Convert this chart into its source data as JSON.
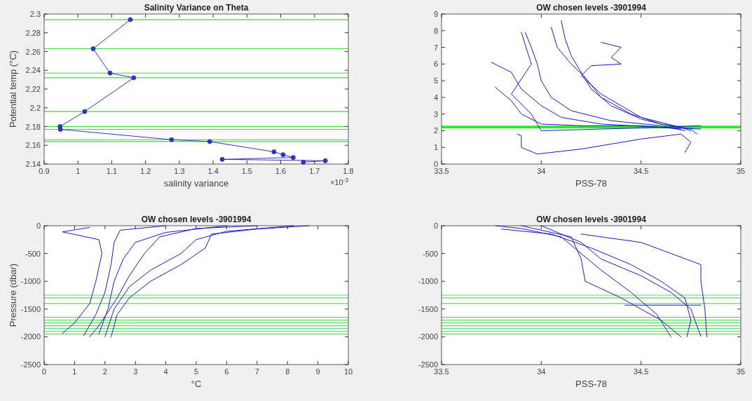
{
  "chart_data": [
    {
      "type": "line",
      "title": "Salinity Variance on Theta",
      "xlabel": "salinity variance",
      "ylabel": "Potential temp (°C)",
      "annotations": [
        "×10$^{-3}$"
      ],
      "marker": "circle",
      "grid": false,
      "xlim": [
        0.9,
        1.8
      ],
      "xticks": [
        0.9,
        1,
        1.1,
        1.2,
        1.3,
        1.4,
        1.5,
        1.6,
        1.7,
        1.8
      ],
      "ylim": [
        2.14,
        2.3
      ],
      "yticks": [
        2.14,
        2.16,
        2.18,
        2.2,
        2.22,
        2.24,
        2.26,
        2.28,
        2.3
      ],
      "series": [
        {
          "color": "#3333bb",
          "x": [
            1.155,
            1.045,
            1.095,
            1.165,
            1.02,
            0.947,
            0.948,
            1.277,
            1.39,
            1.58,
            1.607,
            1.637,
            1.427,
            1.732,
            1.667
          ],
          "values": [
            2.294,
            2.263,
            2.237,
            2.232,
            2.196,
            2.18,
            2.177,
            2.166,
            2.164,
            2.153,
            2.15,
            2.147,
            2.145,
            2.1435,
            2.142
          ]
        }
      ],
      "ref_lines": [
        {
          "axis": "y",
          "value": 2.294,
          "color": "#33dd33"
        },
        {
          "axis": "y",
          "value": 2.263,
          "color": "#33dd33"
        },
        {
          "axis": "y",
          "value": 2.237,
          "color": "#33dd33"
        },
        {
          "axis": "y",
          "value": 2.232,
          "color": "#33dd33"
        },
        {
          "axis": "y",
          "value": 2.196,
          "color": "#33dd33"
        },
        {
          "axis": "y",
          "value": 2.18,
          "color": "#33dd33"
        },
        {
          "axis": "y",
          "value": 2.177,
          "color": "#33dd33"
        },
        {
          "axis": "y",
          "value": 2.166,
          "color": "#33dd33"
        },
        {
          "axis": "y",
          "value": 2.164,
          "color": "#33dd33"
        }
      ]
    },
    {
      "type": "line",
      "title": "OW chosen levels -3901994",
      "xlabel": "PSS-78",
      "grid": false,
      "xlim": [
        33.5,
        35
      ],
      "xticks": [
        33.5,
        34,
        34.5,
        35
      ],
      "ylim": [
        0,
        9
      ],
      "yticks": [
        0,
        1,
        2,
        3,
        4,
        5,
        6,
        7,
        8,
        9
      ],
      "series": [
        {
          "color": "#1a1acc",
          "x": [
            34.1,
            34.12,
            34.15,
            34.2,
            34.25,
            34.35,
            34.5,
            34.6,
            34.7,
            34.75
          ],
          "values": [
            8.6,
            7.5,
            6.5,
            5.5,
            4.5,
            3.5,
            2.7,
            2.4,
            2.2,
            2.0
          ]
        },
        {
          "color": "#1a1acc",
          "x": [
            34.05,
            34.08,
            34.15,
            34.22,
            34.3,
            34.45,
            34.6,
            34.75,
            34.78
          ],
          "values": [
            8.2,
            7,
            6,
            5.2,
            4,
            3,
            2.4,
            2.1,
            1.8
          ]
        },
        {
          "color": "#1a1acc",
          "x": [
            33.92,
            33.95,
            33.98,
            34.0,
            34.05,
            34.15,
            34.35,
            34.6,
            34.72
          ],
          "values": [
            7.9,
            7,
            6,
            5,
            4,
            3.2,
            2.6,
            2.3,
            2.0
          ]
        },
        {
          "color": "#1a1acc",
          "x": [
            33.77,
            33.85,
            33.9,
            34.0,
            34.2,
            34.5,
            34.7
          ],
          "values": [
            4.6,
            3.8,
            3,
            2.4,
            2.3,
            2.3,
            2.1
          ]
        },
        {
          "color": "#1a1acc",
          "x": [
            33.88,
            33.9,
            33.9,
            33.98,
            34.2,
            34.5,
            34.7,
            34.75,
            34.72
          ],
          "values": [
            1.8,
            1.7,
            1.0,
            0.6,
            0.9,
            1.5,
            1.8,
            1.3,
            0.7
          ]
        },
        {
          "color": "#1a1acc",
          "x": [
            34.3,
            34.4,
            34.35,
            34.4,
            34.25,
            34.2,
            34.3,
            34.5,
            34.7
          ],
          "values": [
            7.3,
            7.0,
            6.4,
            6.0,
            5.9,
            5.3,
            4.2,
            2.8,
            2.2
          ]
        },
        {
          "color": "#1a1acc",
          "x": [
            33.75,
            33.85,
            33.9,
            34.0,
            34.1,
            34.3,
            34.6,
            34.8
          ],
          "values": [
            6.1,
            5.5,
            4.5,
            3.5,
            2.8,
            2.4,
            2.2,
            2.1
          ]
        },
        {
          "color": "#1a1acc",
          "x": [
            33.9,
            33.95,
            33.85,
            33.95,
            34.0,
            34.3,
            34.6,
            34.8
          ],
          "values": [
            7.9,
            6,
            4.2,
            3,
            2.0,
            2.1,
            2.2,
            2.3
          ]
        }
      ],
      "bands": [
        {
          "axis": "y",
          "from": 2.14,
          "to": 2.3,
          "color": "#22ee22"
        }
      ]
    },
    {
      "type": "line",
      "title": "OW chosen levels -3901994",
      "xlabel": "°C",
      "ylabel": "Pressure (dbar)",
      "grid": false,
      "xlim": [
        0,
        10
      ],
      "xticks": [
        0,
        1,
        2,
        3,
        4,
        5,
        6,
        7,
        8,
        9,
        10
      ],
      "ylim": [
        -2500,
        0
      ],
      "yticks": [
        -2500,
        -2000,
        -1500,
        -1000,
        -500,
        0
      ],
      "series": [
        {
          "color": "#1a1acc",
          "x": [
            8.7,
            7,
            5.5,
            5.3,
            4.5,
            3.5,
            2.8,
            2.4,
            2.2
          ],
          "values": [
            0,
            -60,
            -150,
            -400,
            -700,
            -1000,
            -1300,
            -1600,
            -2000
          ]
        },
        {
          "color": "#1a1acc",
          "x": [
            8.2,
            6,
            5,
            4.5,
            3.5,
            2.8,
            2.3,
            2.0
          ],
          "values": [
            0,
            -100,
            -250,
            -500,
            -800,
            -1100,
            -1500,
            -2000
          ]
        },
        {
          "color": "#1a1acc",
          "x": [
            6,
            4,
            3,
            2.6,
            2.3,
            2.1,
            1.8
          ],
          "values": [
            0,
            -120,
            -300,
            -600,
            -1000,
            -1500,
            -1950
          ]
        },
        {
          "color": "#1a1acc",
          "x": [
            4,
            2.5,
            2.3,
            2.2,
            2.0,
            1.7,
            1.3
          ],
          "values": [
            0,
            -80,
            -300,
            -700,
            -1200,
            -1600,
            -1980
          ]
        },
        {
          "color": "#1a1acc",
          "x": [
            1.5,
            0.6,
            1.8,
            1.9,
            1.7,
            1.5,
            1.0,
            0.6
          ],
          "values": [
            -30,
            -110,
            -250,
            -500,
            -1000,
            -1400,
            -1750,
            -1940
          ]
        },
        {
          "color": "#1a1acc",
          "x": [
            7,
            5,
            3.8,
            3.3,
            2.8,
            2.4,
            1.8,
            1.5
          ],
          "values": [
            0,
            -50,
            -200,
            -500,
            -900,
            -1300,
            -1800,
            -2000
          ]
        }
      ],
      "ref_lines": [
        {
          "axis": "y",
          "value": -1250,
          "color": "#55dd55"
        },
        {
          "axis": "y",
          "value": -1300,
          "color": "#55dd55"
        },
        {
          "axis": "y",
          "value": -1400,
          "color": "#55dd55"
        },
        {
          "axis": "y",
          "value": -1650,
          "color": "#55dd55"
        },
        {
          "axis": "y",
          "value": -1700,
          "color": "#55dd55"
        },
        {
          "axis": "y",
          "value": -1750,
          "color": "#55dd55"
        },
        {
          "axis": "y",
          "value": -1800,
          "color": "#55dd55"
        },
        {
          "axis": "y",
          "value": -1850,
          "color": "#55dd55"
        },
        {
          "axis": "y",
          "value": -1900,
          "color": "#55dd55"
        },
        {
          "axis": "y",
          "value": -1950,
          "color": "#55dd55"
        }
      ]
    },
    {
      "type": "line",
      "title": "OW chosen levels -3901994",
      "xlabel": "PSS-78",
      "grid": false,
      "xlim": [
        33.5,
        35
      ],
      "xticks": [
        33.5,
        34,
        34.5,
        35
      ],
      "ylim": [
        -2500,
        0
      ],
      "yticks": [
        -2500,
        -2000,
        -1500,
        -1000,
        -500,
        0
      ],
      "series": [
        {
          "color": "#1a1acc",
          "x": [
            33.77,
            33.9,
            34.1,
            34.2,
            34.3,
            34.45,
            34.58,
            34.65
          ],
          "values": [
            0,
            -50,
            -200,
            -500,
            -800,
            -1200,
            -1600,
            -2000
          ]
        },
        {
          "color": "#1a1acc",
          "x": [
            33.8,
            34.05,
            34.25,
            34.45,
            34.6,
            34.72,
            34.75,
            34.73
          ],
          "values": [
            -60,
            -150,
            -400,
            -700,
            -1000,
            -1300,
            -1700,
            -2000
          ]
        },
        {
          "color": "#1a1acc",
          "x": [
            34.2,
            34.5,
            34.65,
            34.8,
            34.8,
            34.82,
            34.83
          ],
          "values": [
            -150,
            -300,
            -500,
            -700,
            -1000,
            -1500,
            -2000
          ]
        },
        {
          "color": "#1a1acc",
          "x": [
            33.9,
            34.15,
            34.2,
            34.22,
            34.4,
            34.6,
            34.7
          ],
          "values": [
            0,
            -200,
            -600,
            -1000,
            -1300,
            -1700,
            -2000
          ]
        },
        {
          "color": "#1a1acc",
          "x": [
            34.0,
            34.2,
            34.3,
            34.5,
            34.65,
            34.75,
            34.78,
            34.8
          ],
          "values": [
            0,
            -300,
            -600,
            -900,
            -1200,
            -1500,
            -1800,
            -1990
          ]
        },
        {
          "color": "#1a1acc",
          "x": [
            34.42,
            34.8
          ],
          "values": [
            -1430,
            -1430
          ]
        }
      ],
      "ref_lines": [
        {
          "axis": "y",
          "value": -1250,
          "color": "#55dd55"
        },
        {
          "axis": "y",
          "value": -1300,
          "color": "#55dd55"
        },
        {
          "axis": "y",
          "value": -1400,
          "color": "#55dd55"
        },
        {
          "axis": "y",
          "value": -1650,
          "color": "#55dd55"
        },
        {
          "axis": "y",
          "value": -1700,
          "color": "#55dd55"
        },
        {
          "axis": "y",
          "value": -1750,
          "color": "#55dd55"
        },
        {
          "axis": "y",
          "value": -1800,
          "color": "#55dd55"
        },
        {
          "axis": "y",
          "value": -1850,
          "color": "#55dd55"
        },
        {
          "axis": "y",
          "value": -1900,
          "color": "#55dd55"
        },
        {
          "axis": "y",
          "value": -1950,
          "color": "#55dd55"
        }
      ]
    }
  ]
}
